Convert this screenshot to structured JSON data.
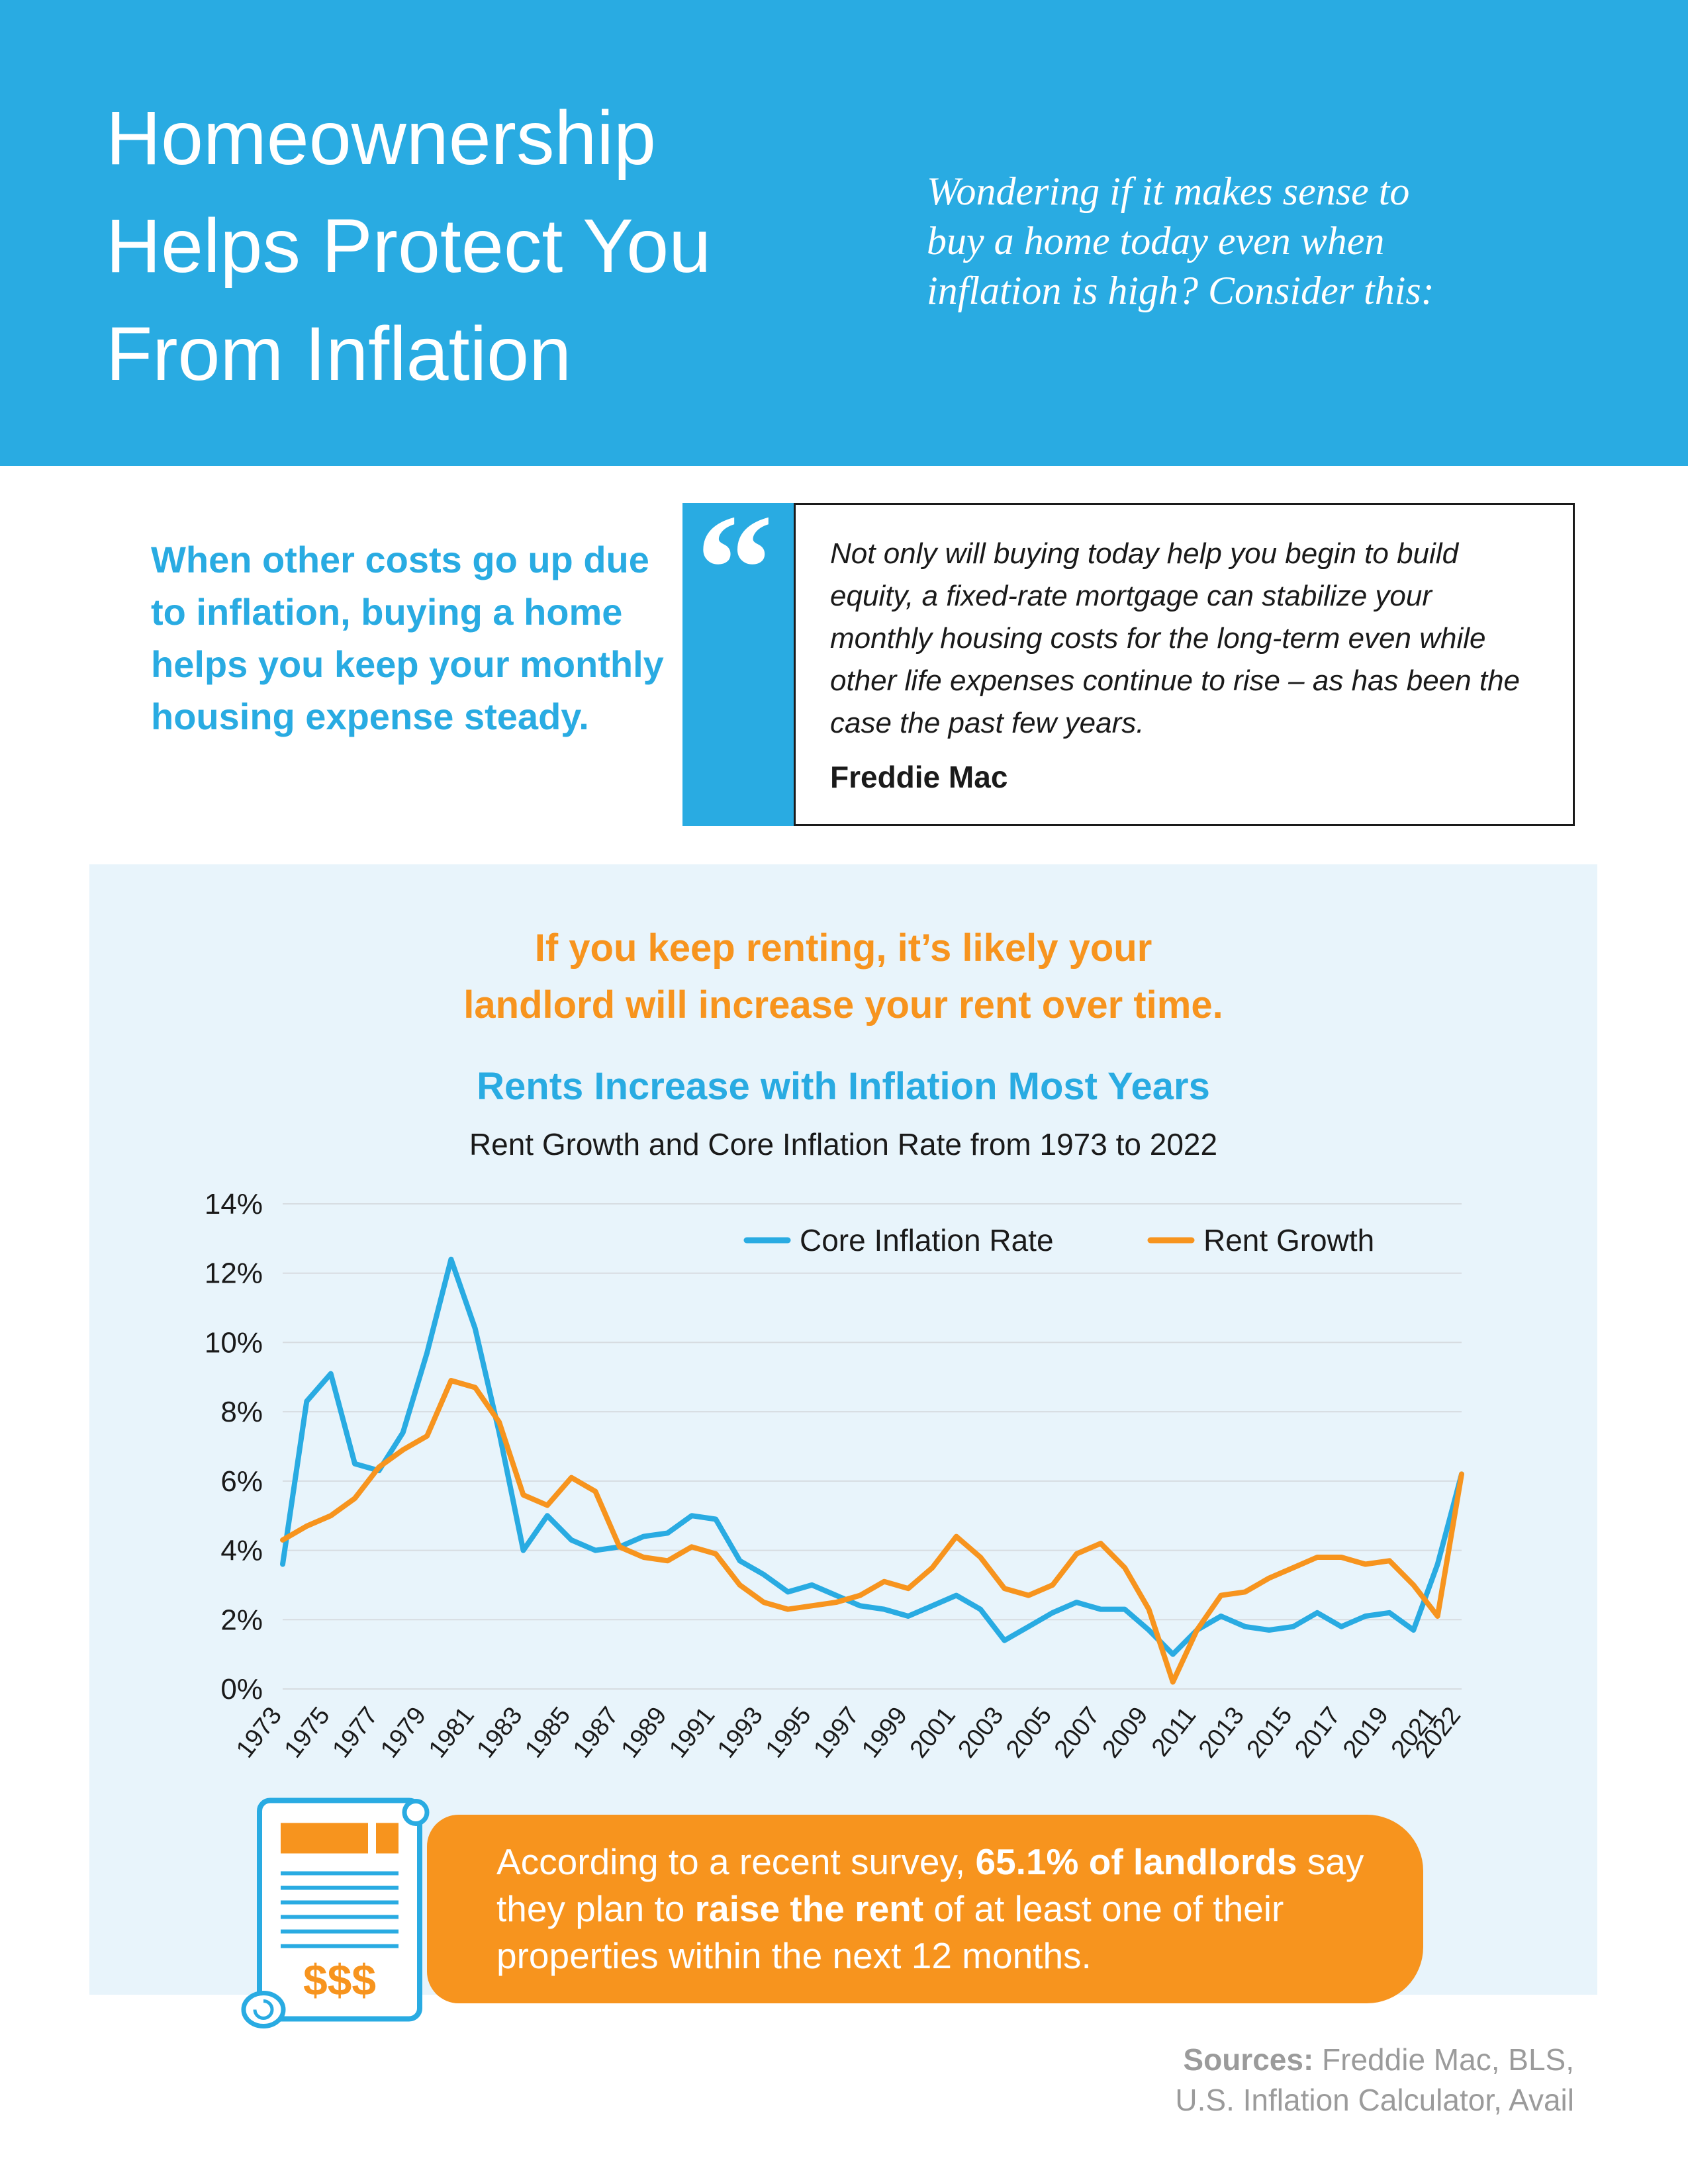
{
  "colors": {
    "brand_blue": "#29ABE2",
    "brand_orange": "#F7941E",
    "panel_light_blue": "#E8F4FB"
  },
  "header": {
    "title_lines": [
      "Homeownership",
      "Helps Protect You",
      "From Inflation"
    ],
    "tagline_lines": [
      "Wondering if it makes sense to",
      "buy a home today even when",
      "inflation is high? Consider this:"
    ]
  },
  "intro": {
    "statement": "When other costs go up due to inflation, buying a home helps you keep your monthly housing expense steady.",
    "quote_mark": "“",
    "quote": "Not only will buying today help you begin to build equity, a fixed-rate mortgage can stabilize your monthly housing costs for the long-term even while other life expenses continue to rise – as has been the case the past few years.",
    "quote_attribution": "Freddie Mac"
  },
  "chart_section": {
    "headline_lines": [
      "If you keep renting, it’s likely your",
      "landlord will increase your rent over time."
    ]
  },
  "chart_data": {
    "type": "line",
    "title": "Rents Increase with Inflation Most Years",
    "subtitle": "Rent Growth and Core Inflation Rate from 1973 to 2022",
    "xlabel": "",
    "ylabel": "",
    "ylim": [
      0,
      14
    ],
    "grid": true,
    "legend_position": "top",
    "y_tick_labels": [
      "0%",
      "2%",
      "4%",
      "6%",
      "8%",
      "10%",
      "12%",
      "14%"
    ],
    "x": [
      1973,
      1974,
      1975,
      1976,
      1977,
      1978,
      1979,
      1980,
      1981,
      1982,
      1983,
      1984,
      1985,
      1986,
      1987,
      1988,
      1989,
      1990,
      1991,
      1992,
      1993,
      1994,
      1995,
      1996,
      1997,
      1998,
      1999,
      2000,
      2001,
      2002,
      2003,
      2004,
      2005,
      2006,
      2007,
      2008,
      2009,
      2010,
      2011,
      2012,
      2013,
      2014,
      2015,
      2016,
      2017,
      2018,
      2019,
      2020,
      2021,
      2022
    ],
    "x_tick_labels": [
      "1973",
      "1975",
      "1977",
      "1979",
      "1981",
      "1983",
      "1985",
      "1987",
      "1989",
      "1991",
      "1993",
      "1995",
      "1997",
      "1999",
      "2001",
      "2003",
      "2005",
      "2007",
      "2009",
      "2011",
      "2013",
      "2015",
      "2017",
      "2019",
      "2021",
      "2022"
    ],
    "series": [
      {
        "name": "Core Inflation Rate",
        "color": "#29ABE2",
        "values": [
          3.6,
          8.3,
          9.1,
          6.5,
          6.3,
          7.4,
          9.7,
          12.4,
          10.4,
          7.4,
          4.0,
          5.0,
          4.3,
          4.0,
          4.1,
          4.4,
          4.5,
          5.0,
          4.9,
          3.7,
          3.3,
          2.8,
          3.0,
          2.7,
          2.4,
          2.3,
          2.1,
          2.4,
          2.7,
          2.3,
          1.4,
          1.8,
          2.2,
          2.5,
          2.3,
          2.3,
          1.7,
          1.0,
          1.7,
          2.1,
          1.8,
          1.7,
          1.8,
          2.2,
          1.8,
          2.1,
          2.2,
          1.7,
          3.6,
          6.2
        ]
      },
      {
        "name": "Rent Growth",
        "color": "#F7941E",
        "values": [
          4.3,
          4.7,
          5.0,
          5.5,
          6.4,
          6.9,
          7.3,
          8.9,
          8.7,
          7.7,
          5.6,
          5.3,
          6.1,
          5.7,
          4.1,
          3.8,
          3.7,
          4.1,
          3.9,
          3.0,
          2.5,
          2.3,
          2.4,
          2.5,
          2.7,
          3.1,
          2.9,
          3.5,
          4.4,
          3.8,
          2.9,
          2.7,
          3.0,
          3.9,
          4.2,
          3.5,
          2.3,
          0.2,
          1.7,
          2.7,
          2.8,
          3.2,
          3.5,
          3.8,
          3.8,
          3.6,
          3.7,
          3.0,
          2.1,
          6.2
        ]
      }
    ]
  },
  "callout": {
    "segments": [
      {
        "text": "According to a recent survey, ",
        "bold": false
      },
      {
        "text": "65.1% of landlords",
        "bold": true
      },
      {
        "text": " say they plan to ",
        "bold": false
      },
      {
        "text": "raise the rent",
        "bold": true
      },
      {
        "text": " of at least one of their properties within the next 12 months.",
        "bold": false
      }
    ],
    "icon_dollars": "$$$"
  },
  "footer": {
    "sources_label": "Sources:",
    "sources_rest": " Freddie Mac, BLS,",
    "sources_line2": "U.S. Inflation Calculator, Avail"
  }
}
